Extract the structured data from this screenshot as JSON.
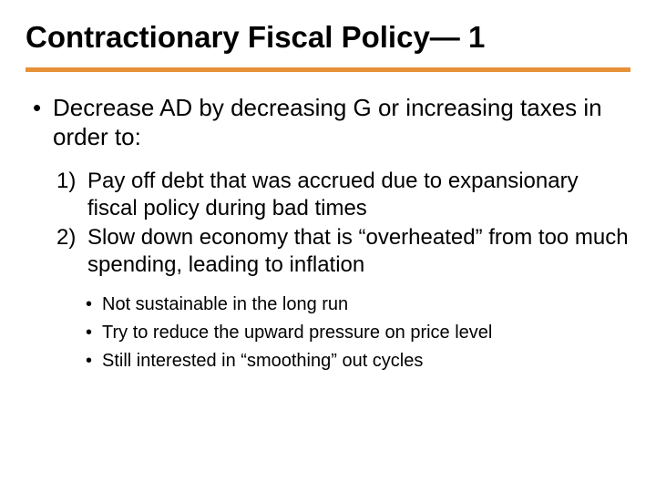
{
  "title": "Contractionary Fiscal Policy— 1",
  "divider_color": "#e69138",
  "background_color": "#ffffff",
  "text_color": "#000000",
  "title_fontsize": 33,
  "body_fontsize": 26,
  "numbered_fontsize": 24,
  "sub_fontsize": 20,
  "main_bullet": "Decrease AD by decreasing G or increasing taxes in order to:",
  "numbered": [
    {
      "n": "1)",
      "text": "Pay off debt that was accrued due to expansionary fiscal policy during bad times"
    },
    {
      "n": "2)",
      "text": "Slow down economy that is “overheated” from too much spending, leading to inflation"
    }
  ],
  "sub_bullets": [
    "Not sustainable in the long run",
    "Try to reduce the upward pressure on price level",
    "Still interested in “smoothing” out cycles"
  ]
}
